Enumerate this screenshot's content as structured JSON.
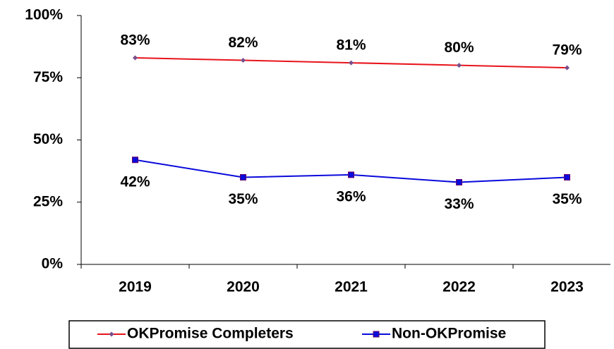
{
  "chart_data": {
    "type": "line",
    "categories": [
      "2019",
      "2020",
      "2021",
      "2022",
      "2023"
    ],
    "series": [
      {
        "name": "OKPromise Completers",
        "color": "#e8141b",
        "values": [
          83,
          82,
          81,
          80,
          79
        ],
        "value_labels": [
          "83%",
          "82%",
          "81%",
          "80%",
          "79%"
        ]
      },
      {
        "name": "Non-OKPromise",
        "color": "#0a0adc",
        "values": [
          42,
          35,
          36,
          33,
          35
        ],
        "value_labels": [
          "42%",
          "35%",
          "36%",
          "33%",
          "35%"
        ]
      }
    ],
    "ylim": [
      0,
      100
    ],
    "yticks": [
      {
        "value": 0,
        "label": "0%"
      },
      {
        "value": 25,
        "label": "25%"
      },
      {
        "value": 50,
        "label": "50%"
      },
      {
        "value": 75,
        "label": "75%"
      },
      {
        "value": 100,
        "label": "100%"
      }
    ],
    "grid": false,
    "legend": "bottom"
  }
}
